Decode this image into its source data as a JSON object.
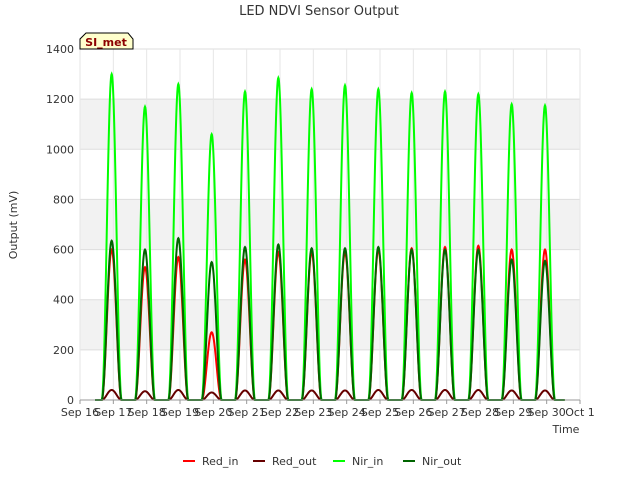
{
  "chart_data": {
    "type": "line",
    "title": "LED NDVI Sensor Output",
    "xlabel": "Time",
    "ylabel": "Output (mV)",
    "ylim": [
      0,
      1400
    ],
    "yticks": [
      0,
      200,
      400,
      600,
      800,
      1000,
      1200,
      1400
    ],
    "xlim": [
      16,
      31
    ],
    "xticks": [
      {
        "value": 16,
        "label": "Sep 16"
      },
      {
        "value": 17,
        "label": "Sep 17"
      },
      {
        "value": 18,
        "label": "Sep 18"
      },
      {
        "value": 19,
        "label": "Sep 19"
      },
      {
        "value": 20,
        "label": "Sep 20"
      },
      {
        "value": 21,
        "label": "Sep 21"
      },
      {
        "value": 22,
        "label": "Sep 22"
      },
      {
        "value": 23,
        "label": "Sep 23"
      },
      {
        "value": 24,
        "label": "Sep 24"
      },
      {
        "value": 25,
        "label": "Sep 25"
      },
      {
        "value": 26,
        "label": "Sep 26"
      },
      {
        "value": 27,
        "label": "Sep 27"
      },
      {
        "value": 28,
        "label": "Sep 28"
      },
      {
        "value": 29,
        "label": "Sep 29"
      },
      {
        "value": 30,
        "label": "Sep 30"
      },
      {
        "value": 31,
        "label": "Oct 1"
      }
    ],
    "badge": "SI_met",
    "grid": true,
    "legend_position": "bottom",
    "series": [
      {
        "name": "Red_in",
        "color": "#ff0000",
        "daily_peaks": [
          600,
          530,
          570,
          270,
          560,
          590,
          590,
          590,
          600,
          605,
          610,
          615,
          600,
          600
        ]
      },
      {
        "name": "Red_out",
        "color": "#660000",
        "daily_peaks": [
          40,
          35,
          40,
          30,
          38,
          38,
          38,
          38,
          40,
          40,
          40,
          40,
          38,
          38
        ]
      },
      {
        "name": "Nir_in",
        "color": "#00ff00",
        "daily_peaks": [
          1300,
          1170,
          1260,
          1060,
          1230,
          1285,
          1240,
          1255,
          1240,
          1225,
          1230,
          1220,
          1180,
          1175
        ]
      },
      {
        "name": "Nir_out",
        "color": "#006400",
        "daily_peaks": [
          635,
          600,
          645,
          550,
          610,
          620,
          605,
          605,
          610,
          600,
          600,
          600,
          560,
          555
        ]
      }
    ]
  }
}
